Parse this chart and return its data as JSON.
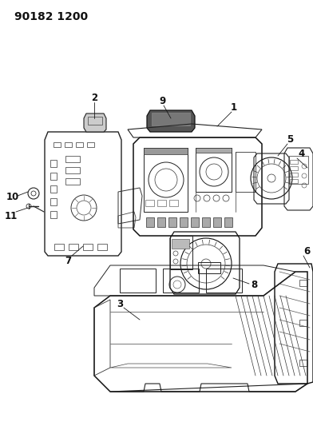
{
  "title_code": "90182 1200",
  "bg_color": "#ffffff",
  "line_color": "#1a1a1a",
  "label_color": "#111111",
  "title_fontsize": 10,
  "label_fontsize": 8.5,
  "fig_width": 3.92,
  "fig_height": 5.33,
  "dpi": 100,
  "gray": "#555555",
  "light_gray": "#888888",
  "mid_gray": "#444444"
}
